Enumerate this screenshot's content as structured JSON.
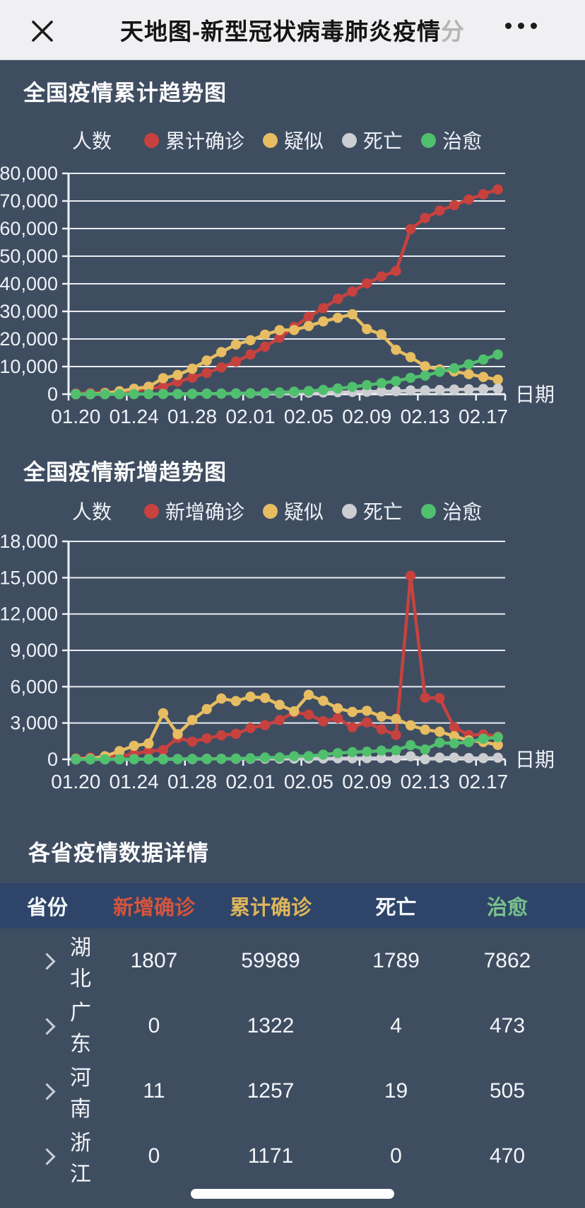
{
  "nav": {
    "title_main": "天地图-新型冠状病毒肺炎疫情",
    "title_faded": "分"
  },
  "chart_data": [
    {
      "type": "line",
      "title": "全国疫情累计趋势图",
      "y_axis_name": "人数",
      "x_axis_name": "日期",
      "ylim": [
        0,
        80000
      ],
      "y_step": 10000,
      "x_label_every": 4,
      "grid": true,
      "legend_position": "top",
      "x": [
        "01.20",
        "01.21",
        "01.22",
        "01.23",
        "01.24",
        "01.25",
        "01.26",
        "01.27",
        "01.28",
        "01.29",
        "01.30",
        "01.31",
        "02.01",
        "02.02",
        "02.03",
        "02.04",
        "02.05",
        "02.06",
        "02.07",
        "02.08",
        "02.09",
        "02.10",
        "02.11",
        "02.12",
        "02.13",
        "02.14",
        "02.15",
        "02.16",
        "02.17",
        "02.18"
      ],
      "series": [
        {
          "id": "cumulative-confirmed",
          "name": "累计确诊",
          "color": "#c7423e",
          "values": [
            291,
            440,
            571,
            830,
            1287,
            1975,
            2744,
            4515,
            5974,
            7711,
            9692,
            11791,
            14380,
            17205,
            20438,
            24324,
            28018,
            31161,
            34546,
            37198,
            40171,
            42638,
            44653,
            59804,
            63851,
            66492,
            68500,
            70548,
            72436,
            74185
          ]
        },
        {
          "id": "suspected",
          "name": "疑似",
          "color": "#e6bd62",
          "values": [
            54,
            37,
            393,
            1072,
            1965,
            2684,
            5794,
            6973,
            9239,
            12167,
            15238,
            17988,
            19544,
            21558,
            23214,
            23260,
            24702,
            26359,
            27657,
            28942,
            23589,
            21675,
            16067,
            13435,
            10109,
            8969,
            8228,
            7264,
            6242,
            5248
          ]
        },
        {
          "id": "deaths",
          "name": "死亡",
          "color": "#cdced2",
          "values": [
            6,
            9,
            17,
            25,
            41,
            56,
            80,
            106,
            132,
            170,
            213,
            259,
            304,
            361,
            425,
            490,
            563,
            636,
            722,
            811,
            908,
            1016,
            1113,
            1367,
            1380,
            1523,
            1665,
            1770,
            1868,
            2004
          ]
        },
        {
          "id": "cured",
          "name": "治愈",
          "color": "#50bf6e",
          "values": [
            25,
            25,
            28,
            34,
            38,
            49,
            51,
            60,
            103,
            124,
            171,
            243,
            328,
            475,
            632,
            892,
            1153,
            1540,
            2050,
            2649,
            3281,
            3996,
            4740,
            5911,
            6723,
            8096,
            9419,
            10844,
            12552,
            14376
          ]
        }
      ]
    },
    {
      "type": "line",
      "title": "全国疫情新增趋势图",
      "y_axis_name": "人数",
      "x_axis_name": "日期",
      "ylim": [
        0,
        18000
      ],
      "y_step": 3000,
      "x_label_every": 4,
      "grid": true,
      "legend_position": "top",
      "x": [
        "01.20",
        "01.21",
        "01.22",
        "01.23",
        "01.24",
        "01.25",
        "01.26",
        "01.27",
        "01.28",
        "01.29",
        "01.30",
        "01.31",
        "02.01",
        "02.02",
        "02.03",
        "02.04",
        "02.05",
        "02.06",
        "02.07",
        "02.08",
        "02.09",
        "02.10",
        "02.11",
        "02.12",
        "02.13",
        "02.14",
        "02.15",
        "02.16",
        "02.17",
        "02.18"
      ],
      "series": [
        {
          "id": "new-confirmed",
          "name": "新增确诊",
          "color": "#c7423e",
          "values": [
            77,
            149,
            131,
            259,
            444,
            688,
            769,
            1771,
            1459,
            1737,
            1982,
            2102,
            2590,
            2829,
            3235,
            3887,
            3694,
            3143,
            3399,
            2656,
            3062,
            2478,
            2015,
            15152,
            5090,
            5052,
            2641,
            2009,
            2048,
            1886
          ]
        },
        {
          "id": "new-suspected",
          "name": "疑似",
          "color": "#e6bd62",
          "values": [
            27,
            53,
            257,
            680,
            1118,
            1309,
            3806,
            2077,
            3248,
            4148,
            5019,
            4812,
            5173,
            5072,
            4501,
            3971,
            5328,
            4833,
            4214,
            3916,
            4008,
            3536,
            3342,
            2807,
            2450,
            2277,
            1918,
            1563,
            1432,
            1185
          ]
        },
        {
          "id": "new-deaths",
          "name": "死亡",
          "color": "#cdced2",
          "values": [
            0,
            3,
            8,
            8,
            16,
            15,
            24,
            26,
            26,
            38,
            43,
            46,
            45,
            57,
            64,
            65,
            73,
            73,
            86,
            89,
            97,
            108,
            97,
            254,
            13,
            143,
            142,
            105,
            98,
            136
          ]
        },
        {
          "id": "new-cured",
          "name": "治愈",
          "color": "#50bf6e",
          "values": [
            0,
            0,
            3,
            6,
            4,
            11,
            2,
            9,
            43,
            21,
            47,
            72,
            85,
            147,
            157,
            260,
            261,
            387,
            510,
            599,
            632,
            716,
            744,
            1171,
            812,
            1373,
            1323,
            1425,
            1701,
            1824
          ]
        }
      ]
    }
  ],
  "table": {
    "section_title": "各省疫情数据详情",
    "columns": [
      {
        "key": "province",
        "label": "省份",
        "color": "#f2f5f9"
      },
      {
        "key": "new_confirmed",
        "label": "新增确诊",
        "color": "#d4543f"
      },
      {
        "key": "total_confirmed",
        "label": "累计确诊",
        "color": "#dfb55a"
      },
      {
        "key": "deaths",
        "label": "死亡",
        "color": "#f2f5f9"
      },
      {
        "key": "cured",
        "label": "治愈",
        "color": "#78c28c"
      }
    ],
    "rows": [
      {
        "province": "湖北",
        "new_confirmed": "1807",
        "total_confirmed": "59989",
        "deaths": "1789",
        "cured": "7862"
      },
      {
        "province": "广东",
        "new_confirmed": "0",
        "total_confirmed": "1322",
        "deaths": "4",
        "cured": "473"
      },
      {
        "province": "河南",
        "new_confirmed": "11",
        "total_confirmed": "1257",
        "deaths": "19",
        "cured": "505"
      },
      {
        "province": "浙江",
        "new_confirmed": "0",
        "total_confirmed": "1171",
        "deaths": "0",
        "cured": "470"
      }
    ]
  }
}
